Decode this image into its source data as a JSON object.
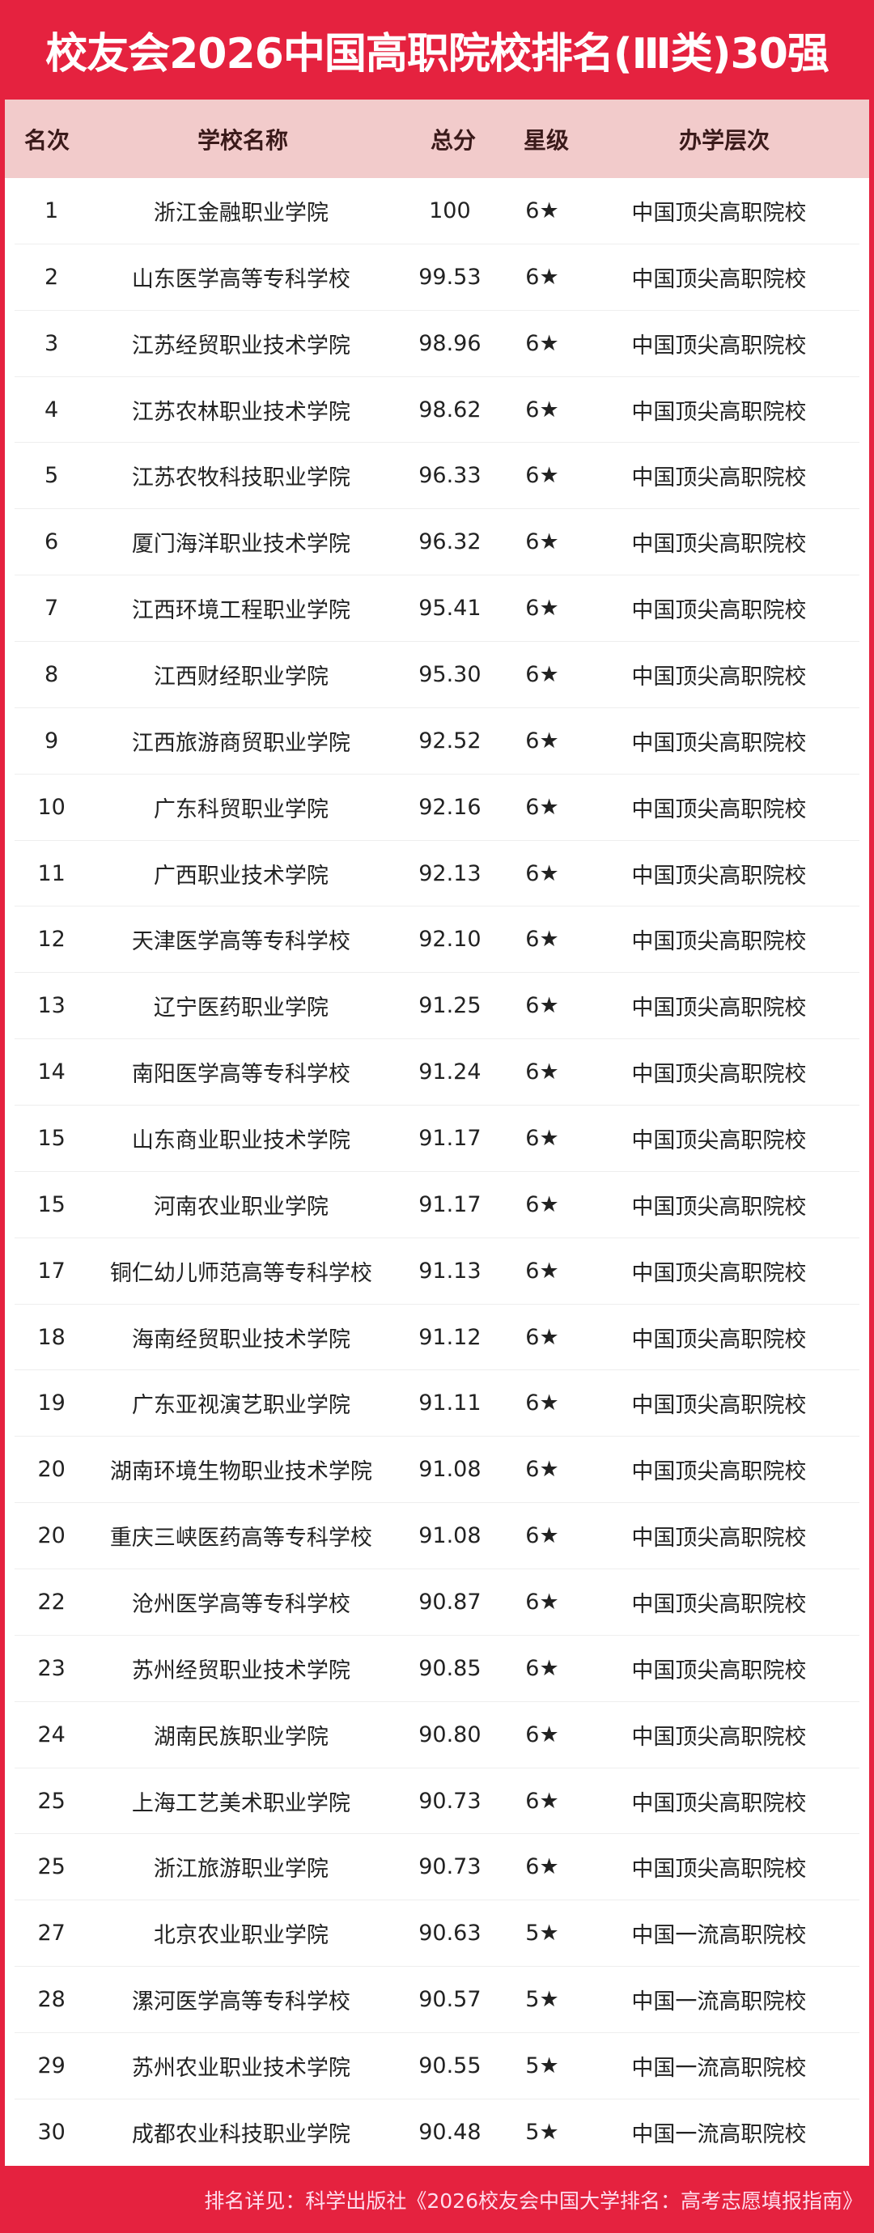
{
  "title": "校友会2026中国高职院校排名(Ⅲ类)30强",
  "colors": {
    "brand_red": "#e5223f",
    "header_pink": "#f2cbcb"
  },
  "columns": [
    "名次",
    "学校名称",
    "总分",
    "星级",
    "办学层次"
  ],
  "rows": [
    [
      "1",
      "浙江金融职业学院",
      "100",
      "6★",
      "中国顶尖高职院校"
    ],
    [
      "2",
      "山东医学高等专科学校",
      "99.53",
      "6★",
      "中国顶尖高职院校"
    ],
    [
      "3",
      "江苏经贸职业技术学院",
      "98.96",
      "6★",
      "中国顶尖高职院校"
    ],
    [
      "4",
      "江苏农林职业技术学院",
      "98.62",
      "6★",
      "中国顶尖高职院校"
    ],
    [
      "5",
      "江苏农牧科技职业学院",
      "96.33",
      "6★",
      "中国顶尖高职院校"
    ],
    [
      "6",
      "厦门海洋职业技术学院",
      "96.32",
      "6★",
      "中国顶尖高职院校"
    ],
    [
      "7",
      "江西环境工程职业学院",
      "95.41",
      "6★",
      "中国顶尖高职院校"
    ],
    [
      "8",
      "江西财经职业学院",
      "95.30",
      "6★",
      "中国顶尖高职院校"
    ],
    [
      "9",
      "江西旅游商贸职业学院",
      "92.52",
      "6★",
      "中国顶尖高职院校"
    ],
    [
      "10",
      "广东科贸职业学院",
      "92.16",
      "6★",
      "中国顶尖高职院校"
    ],
    [
      "11",
      "广西职业技术学院",
      "92.13",
      "6★",
      "中国顶尖高职院校"
    ],
    [
      "12",
      "天津医学高等专科学校",
      "92.10",
      "6★",
      "中国顶尖高职院校"
    ],
    [
      "13",
      "辽宁医药职业学院",
      "91.25",
      "6★",
      "中国顶尖高职院校"
    ],
    [
      "14",
      "南阳医学高等专科学校",
      "91.24",
      "6★",
      "中国顶尖高职院校"
    ],
    [
      "15",
      "山东商业职业技术学院",
      "91.17",
      "6★",
      "中国顶尖高职院校"
    ],
    [
      "15",
      "河南农业职业学院",
      "91.17",
      "6★",
      "中国顶尖高职院校"
    ],
    [
      "17",
      "铜仁幼儿师范高等专科学校",
      "91.13",
      "6★",
      "中国顶尖高职院校"
    ],
    [
      "18",
      "海南经贸职业技术学院",
      "91.12",
      "6★",
      "中国顶尖高职院校"
    ],
    [
      "19",
      "广东亚视演艺职业学院",
      "91.11",
      "6★",
      "中国顶尖高职院校"
    ],
    [
      "20",
      "湖南环境生物职业技术学院",
      "91.08",
      "6★",
      "中国顶尖高职院校"
    ],
    [
      "20",
      "重庆三峡医药高等专科学校",
      "91.08",
      "6★",
      "中国顶尖高职院校"
    ],
    [
      "22",
      "沧州医学高等专科学校",
      "90.87",
      "6★",
      "中国顶尖高职院校"
    ],
    [
      "23",
      "苏州经贸职业技术学院",
      "90.85",
      "6★",
      "中国顶尖高职院校"
    ],
    [
      "24",
      "湖南民族职业学院",
      "90.80",
      "6★",
      "中国顶尖高职院校"
    ],
    [
      "25",
      "上海工艺美术职业学院",
      "90.73",
      "6★",
      "中国顶尖高职院校"
    ],
    [
      "25",
      "浙江旅游职业学院",
      "90.73",
      "6★",
      "中国顶尖高职院校"
    ],
    [
      "27",
      "北京农业职业学院",
      "90.63",
      "5★",
      "中国一流高职院校"
    ],
    [
      "28",
      "漯河医学高等专科学校",
      "90.57",
      "5★",
      "中国一流高职院校"
    ],
    [
      "29",
      "苏州农业职业技术学院",
      "90.55",
      "5★",
      "中国一流高职院校"
    ],
    [
      "30",
      "成都农业科技职业学院",
      "90.48",
      "5★",
      "中国一流高职院校"
    ]
  ],
  "footer": "排名详见：科学出版社《2026校友会中国大学排名：高考志愿填报指南》"
}
